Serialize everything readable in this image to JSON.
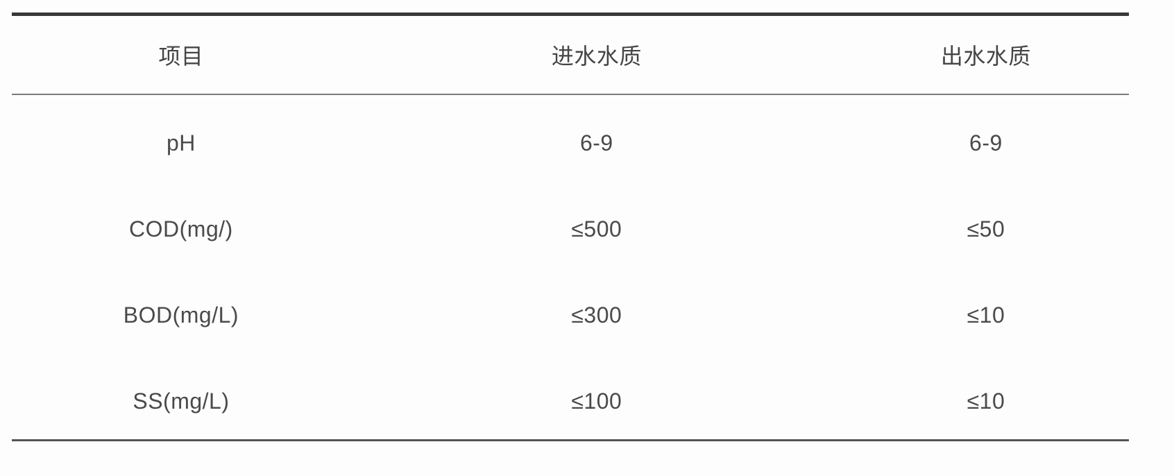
{
  "table": {
    "columns": [
      "项目",
      "进水水质",
      "出水水质"
    ],
    "rows": [
      {
        "cells": [
          "pH",
          "6-9",
          "6-9"
        ]
      },
      {
        "cells": [
          "COD(mg/)",
          "≤500",
          "≤50"
        ]
      },
      {
        "cells": [
          "BOD(mg/L)",
          "≤300",
          "≤10"
        ]
      },
      {
        "cells": [
          "SS(mg/L)",
          "≤100",
          "≤10"
        ]
      }
    ]
  },
  "colors": {
    "background": "#fdfdfd",
    "text": "#4a4a4a",
    "top_rule": "#3b3737",
    "mid_rule": "#7d7a7a",
    "bottom_rule": "#575353"
  },
  "chart_data": {
    "type": "table",
    "title": "",
    "columns": [
      "项目",
      "进水水质",
      "出水水质"
    ],
    "rows": [
      [
        "pH",
        "6-9",
        "6-9"
      ],
      [
        "COD(mg/)",
        "≤500",
        "≤50"
      ],
      [
        "BOD(mg/L)",
        "≤300",
        "≤10"
      ],
      [
        "SS(mg/L)",
        "≤100",
        "≤10"
      ]
    ]
  }
}
